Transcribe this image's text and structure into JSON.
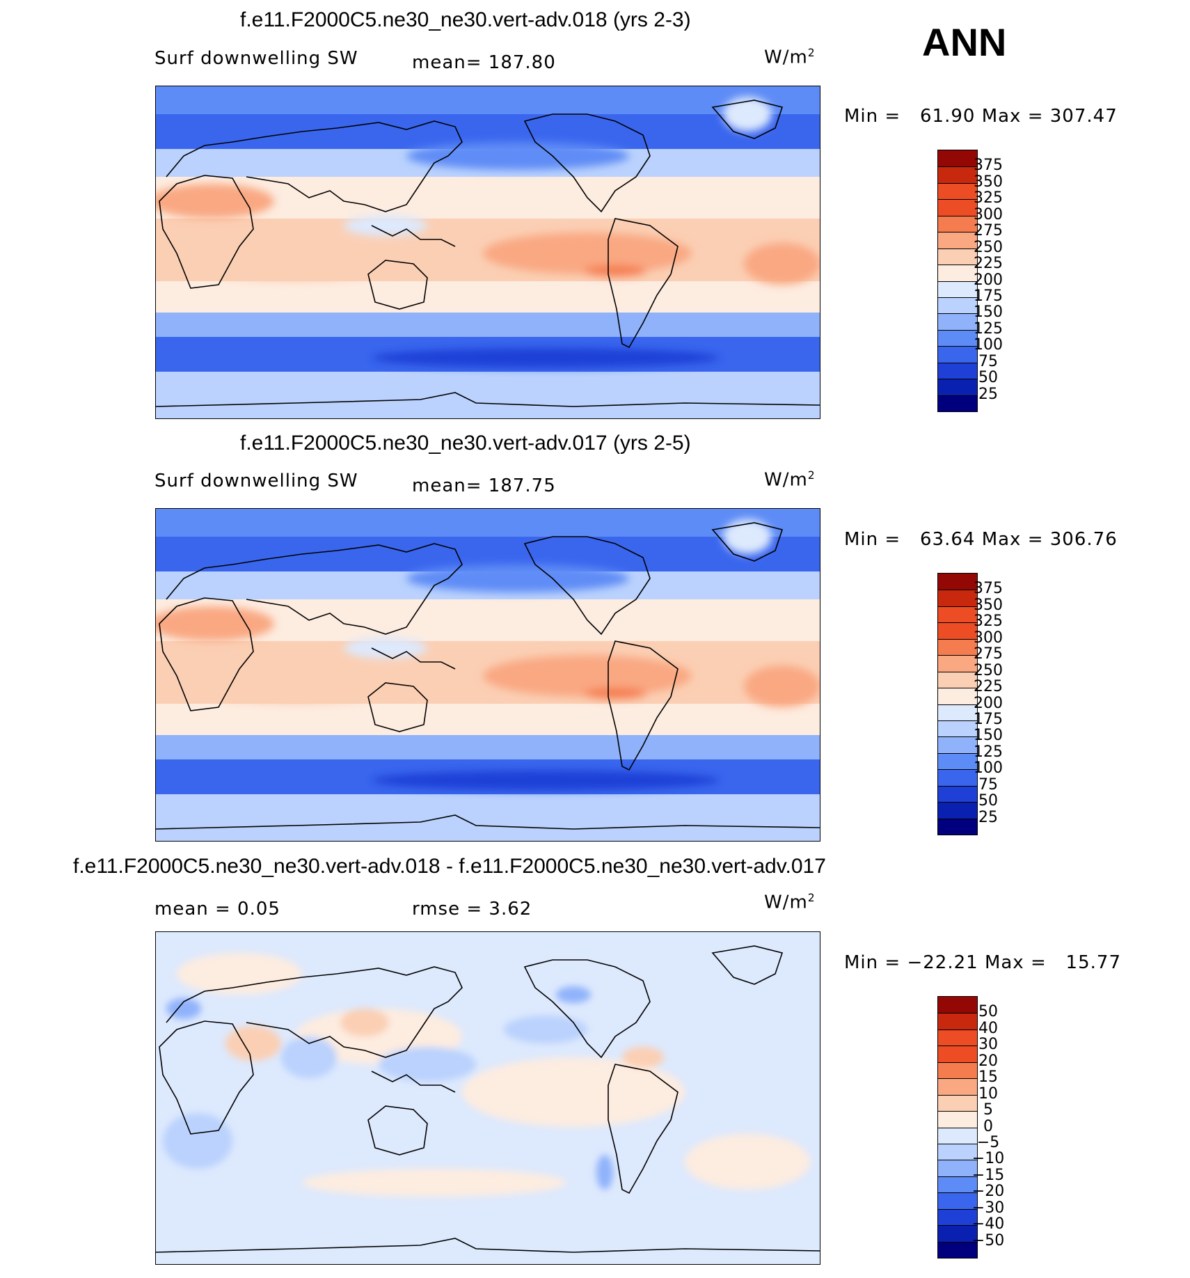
{
  "season": "ANN",
  "palette": {
    "abs": [
      "#00007e",
      "#0a20b0",
      "#1f40d6",
      "#3a66ee",
      "#5e8cf6",
      "#8fb2fb",
      "#bad2fd",
      "#dde9fd",
      "#fdece0",
      "#fbcfb4",
      "#f9a882",
      "#f57c4f",
      "#ec4d25",
      "#c8280d",
      "#930805"
    ],
    "ocean_hi": "#f6a888",
    "ocean_mid": "#fde0cf",
    "pole": "#2e5ae8",
    "storm": "#1f40d6",
    "land_line": "#000000"
  },
  "panels": [
    {
      "id": "top",
      "title": "f.e11.F2000C5.ne30_ne30.vert-adv.018 (yrs 2-3)",
      "left_label": "Surf downwelling SW",
      "center_label": "mean=  187.80",
      "units": "W/m",
      "units_exp": "2",
      "min_label": "Min  =",
      "min_value": "61.90",
      "max_label": "Max  =",
      "max_value": "307.47",
      "levels": [
        "375",
        "350",
        "325",
        "300",
        "275",
        "250",
        "225",
        "200",
        "175",
        "150",
        "125",
        "100",
        "75",
        "50",
        "25"
      ],
      "kind": "abs"
    },
    {
      "id": "middle",
      "title": "f.e11.F2000C5.ne30_ne30.vert-adv.017 (yrs 2-5)",
      "left_label": "Surf downwelling SW",
      "center_label": "mean=  187.75",
      "units": "W/m",
      "units_exp": "2",
      "min_label": "Min  =",
      "min_value": "63.64",
      "max_label": "Max  =",
      "max_value": "306.76",
      "levels": [
        "375",
        "350",
        "325",
        "300",
        "275",
        "250",
        "225",
        "200",
        "175",
        "150",
        "125",
        "100",
        "75",
        "50",
        "25"
      ],
      "kind": "abs"
    },
    {
      "id": "bottom",
      "title": "f.e11.F2000C5.ne30_ne30.vert-adv.018 - f.e11.F2000C5.ne30_ne30.vert-adv.017",
      "left_label": "mean =     0.05",
      "center_label": "rmse =     3.62",
      "units": "W/m",
      "units_exp": "2",
      "min_label": "Min  =",
      "min_value": "−22.21",
      "max_label": "Max  =",
      "max_value": "15.77",
      "levels": [
        "50",
        "40",
        "30",
        "20",
        "15",
        "10",
        "5",
        "0",
        "−5",
        "−10",
        "−15",
        "−20",
        "−30",
        "−40",
        "−50"
      ],
      "kind": "diff"
    }
  ]
}
